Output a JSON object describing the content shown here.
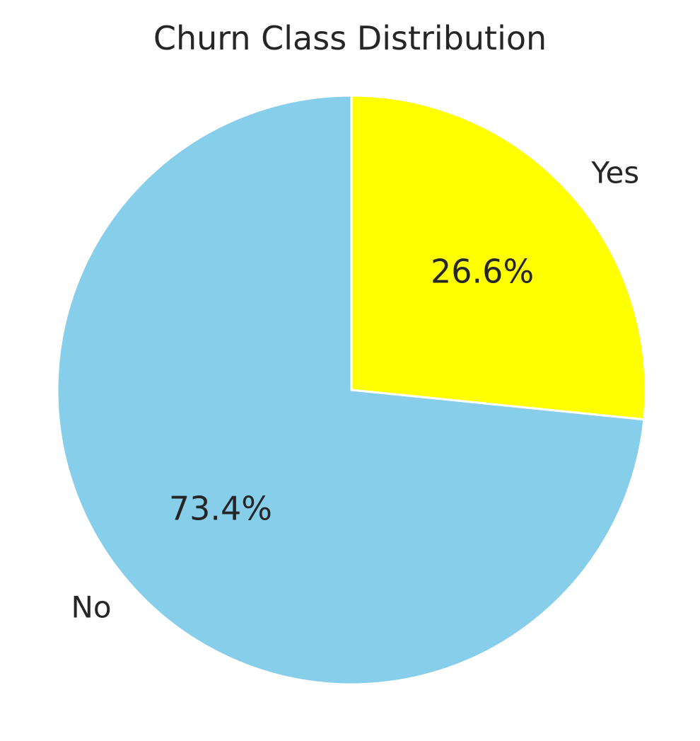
{
  "chart_data": {
    "type": "pie",
    "title": "Churn Class Distribution",
    "categories": [
      "Yes",
      "No"
    ],
    "values": [
      26.6,
      73.4
    ],
    "value_labels": [
      "26.6%",
      "73.4%"
    ],
    "colors": [
      "#ffff00",
      "#87ceeb"
    ],
    "start_angle_deg": 90,
    "direction": "clockwise",
    "legend": "none"
  }
}
